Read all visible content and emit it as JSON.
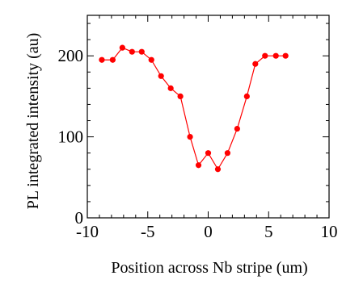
{
  "chart_data": {
    "type": "line",
    "title": "",
    "xlabel": "Position across Nb stripe (um)",
    "ylabel": "PL integrated intensity (au)",
    "xlim": [
      -10,
      10
    ],
    "ylim": [
      0,
      250
    ],
    "x_ticks": [
      "-10",
      "-5",
      "0",
      "5",
      "10"
    ],
    "y_ticks": [
      "0",
      "100",
      "200"
    ],
    "grid": false,
    "legend": "none",
    "series": [
      {
        "color": "#ff0000",
        "marker": "circle",
        "x": [
          -8.8,
          -7.9,
          -7.1,
          -6.3,
          -5.5,
          -4.7,
          -3.9,
          -3.1,
          -2.3,
          -1.5,
          -0.8,
          0.0,
          0.8,
          1.6,
          2.4,
          3.2,
          3.9,
          4.7,
          5.6,
          6.4
        ],
        "y": [
          195,
          195,
          210,
          205,
          205,
          195,
          175,
          160,
          150,
          100,
          65,
          80,
          60,
          80,
          110,
          150,
          190,
          200,
          200,
          200
        ]
      }
    ]
  }
}
